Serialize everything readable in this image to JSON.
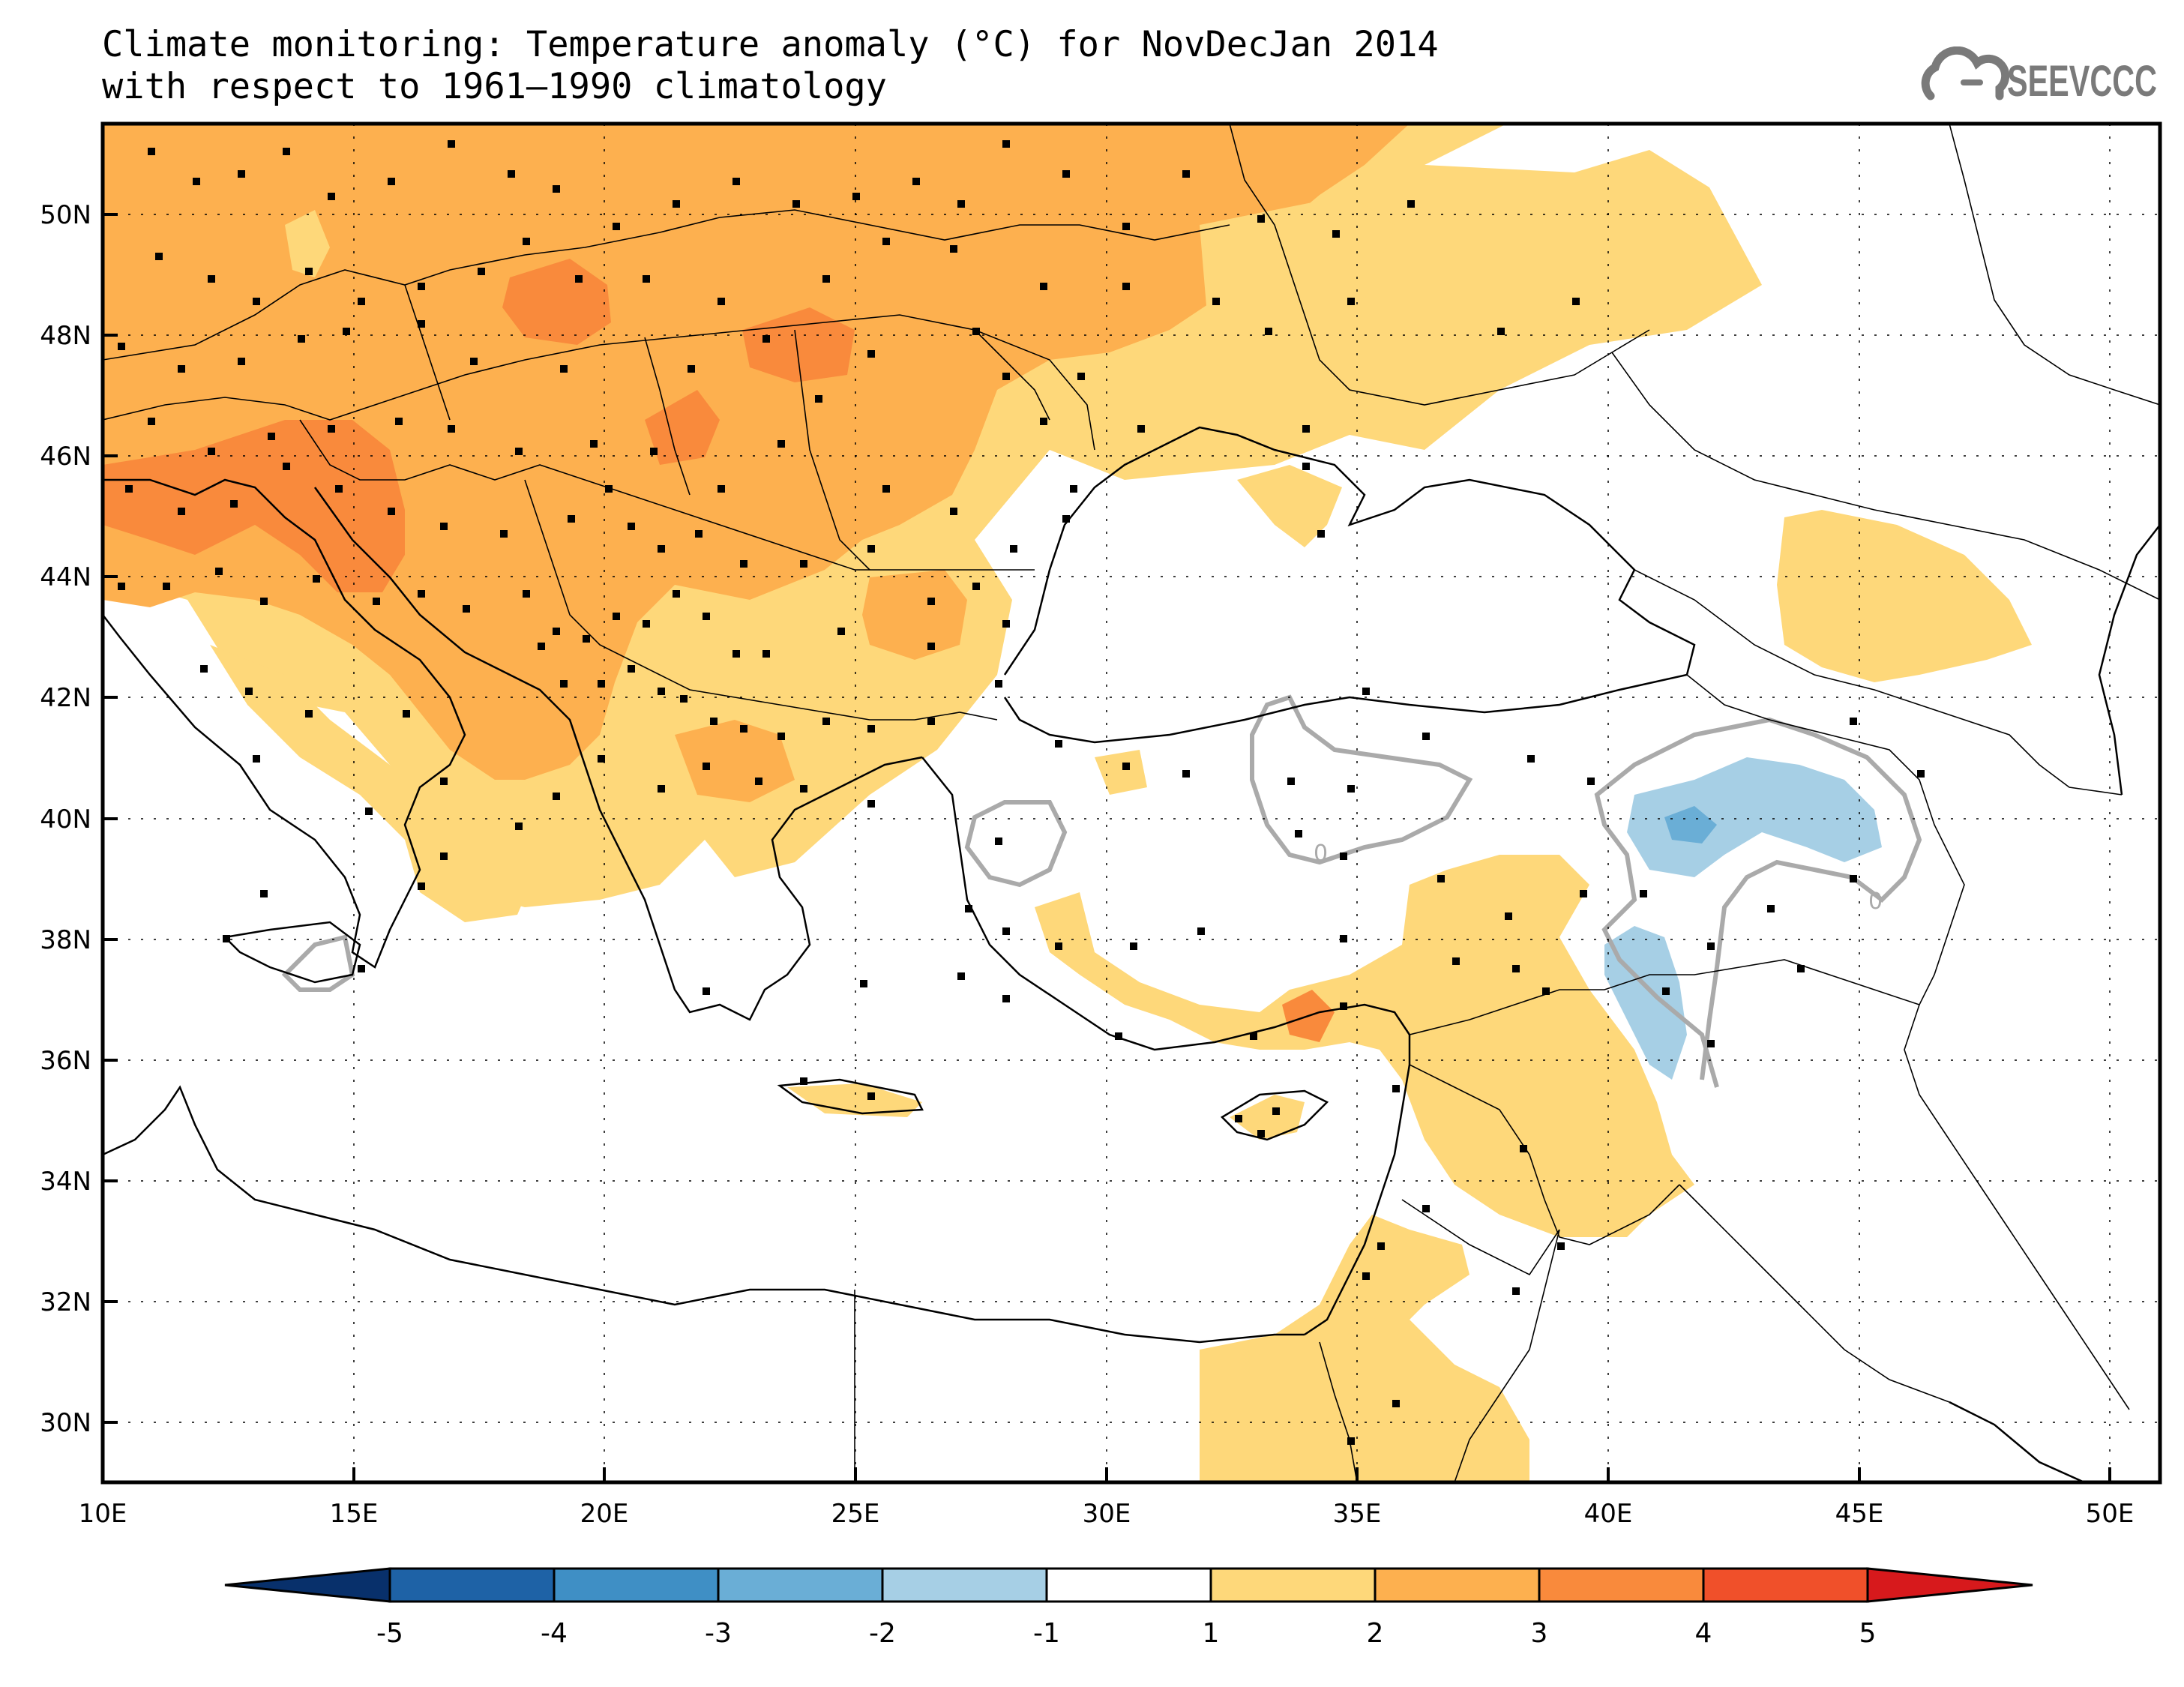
{
  "title": {
    "line1": "Climate monitoring: Temperature anomaly (°C) for NovDecJan 2014",
    "line2": "with respect to 1961–1990 climatology"
  },
  "logo": {
    "text": "SEEVCCC",
    "icon": "cloud-logo-icon"
  },
  "map": {
    "lon_range": [
      10,
      51
    ],
    "lat_range": [
      29,
      51.5
    ],
    "lon_ticks": [
      "10E",
      "15E",
      "20E",
      "25E",
      "30E",
      "35E",
      "40E",
      "45E",
      "50E"
    ],
    "lat_ticks": [
      "30N",
      "32N",
      "34N",
      "36N",
      "38N",
      "40N",
      "42N",
      "44N",
      "46N",
      "48N",
      "50N"
    ],
    "contour_label": "0",
    "colors": {
      "anomaly_1_2": "#fed87a",
      "anomaly_2_3": "#fdb04f",
      "anomaly_3_4": "#f98a3c",
      "anomaly_-2_-1": "#a6cfe5",
      "anomaly_-3_-2": "#6aaed6",
      "zero_contour": "#aaaaaa"
    }
  },
  "colorbar": {
    "labels": [
      "-5",
      "-4",
      "-3",
      "-2",
      "-1",
      "1",
      "2",
      "3",
      "4",
      "5"
    ],
    "colors": [
      "#08306b",
      "#1e62a6",
      "#3f8fc5",
      "#6aaed6",
      "#a6cfe5",
      "#ffffff",
      "#fed87a",
      "#fdb04f",
      "#f98a3c",
      "#f0502a",
      "#d7191c"
    ]
  }
}
